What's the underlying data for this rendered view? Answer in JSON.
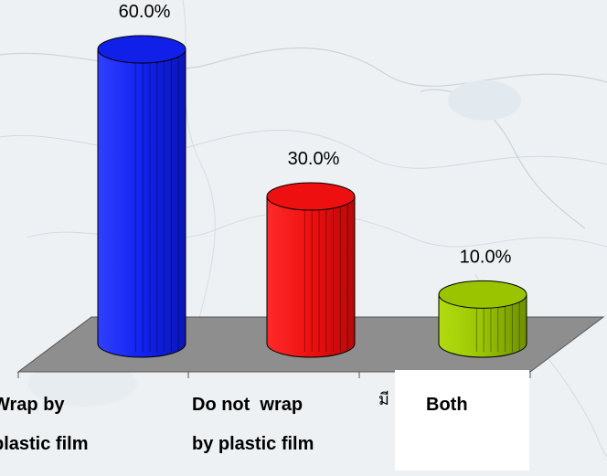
{
  "chart_data": {
    "type": "bar",
    "style": "3d-cylinder",
    "categories": [
      "Wrap by plastic film",
      "Do not  wrap by plastic film",
      "Both"
    ],
    "category_label_lines": [
      [
        "Wrap by",
        "plastic film"
      ],
      [
        "Do not  wrap",
        "by plastic film"
      ],
      [
        "Both"
      ]
    ],
    "values": [
      60.0,
      30.0,
      10.0
    ],
    "value_labels": [
      "60.0%",
      "30.0%",
      "10.0%"
    ],
    "ylim": [
      0,
      60
    ],
    "grid": false,
    "legend": "none",
    "colors": [
      "#1020e8",
      "#ee1010",
      "#9ac400"
    ],
    "floor_color": "#8e8e8e",
    "background": "faded map"
  },
  "stray_text": "มี"
}
